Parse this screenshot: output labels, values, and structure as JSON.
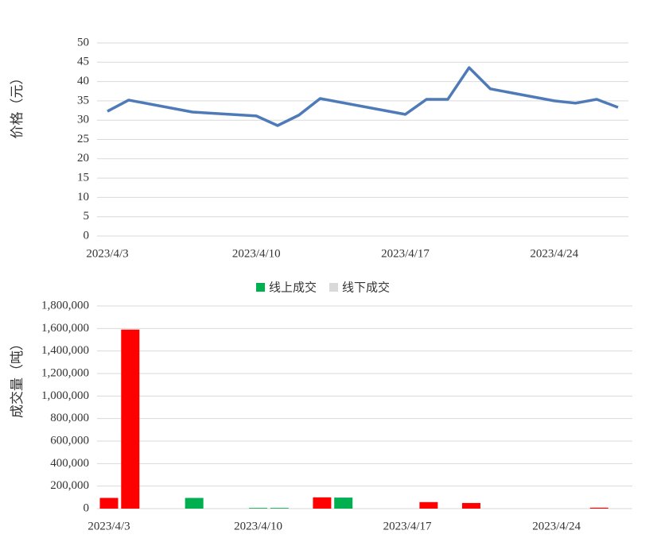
{
  "chart_data": [
    {
      "type": "line",
      "y_label": "价格（元）",
      "color": "#4f7ab8",
      "grid": true,
      "x": [
        "2023/4/3",
        "2023/4/4",
        "2023/4/7",
        "2023/4/10",
        "2023/4/11",
        "2023/4/12",
        "2023/4/13",
        "2023/4/17",
        "2023/4/18",
        "2023/4/19",
        "2023/4/20",
        "2023/4/21",
        "2023/4/24",
        "2023/4/25",
        "2023/4/26",
        "2023/4/27"
      ],
      "values": [
        32.3,
        35.2,
        32.1,
        31.1,
        28.6,
        31.3,
        35.6,
        31.5,
        35.4,
        35.4,
        43.6,
        38.1,
        35,
        34.4,
        35.4,
        33.3
      ],
      "xlim": [
        "2023/4/3",
        "2023/4/27"
      ],
      "xticks": [
        "2023/4/3",
        "2023/4/10",
        "2023/4/17",
        "2023/4/24"
      ],
      "ylim": [
        0,
        50
      ],
      "yticks": [
        0,
        5,
        10,
        15,
        20,
        25,
        30,
        35,
        40,
        45,
        50
      ]
    },
    {
      "type": "bar",
      "y_label": "成交量（吨）",
      "grid": true,
      "x": [
        "2023/4/3",
        "2023/4/4",
        "2023/4/7",
        "2023/4/10",
        "2023/4/11",
        "2023/4/13",
        "2023/4/14",
        "2023/4/18",
        "2023/4/20",
        "2023/4/26"
      ],
      "series": [
        {
          "color": "#ff0000",
          "values": [
            95000,
            1590000,
            null,
            null,
            null,
            100000,
            null,
            58000,
            50000,
            8000
          ]
        },
        {
          "name": "线上成交",
          "color": "#00b050",
          "values": [
            null,
            null,
            95000,
            6000,
            6000,
            null,
            98000,
            null,
            null,
            null
          ]
        },
        {
          "name": "线下成交",
          "color": "#d9d9d9",
          "values": [
            null,
            null,
            null,
            null,
            null,
            null,
            null,
            null,
            null,
            null
          ]
        }
      ],
      "xlim": [
        "2023/4/3",
        "2023/4/27"
      ],
      "xticks": [
        "2023/4/3",
        "2023/4/10",
        "2023/4/17",
        "2023/4/24"
      ],
      "ylim": [
        0,
        1800000
      ],
      "yticks": [
        0,
        {
          "value": 200000,
          "label": "200,000"
        },
        {
          "value": 400000,
          "label": "400,000"
        },
        {
          "value": 600000,
          "label": "600,000"
        },
        {
          "value": 800000,
          "label": "800,000"
        },
        {
          "value": 1000000,
          "label": "1,000,000"
        },
        {
          "value": 1200000,
          "label": "1,200,000"
        },
        {
          "value": 1400000,
          "label": "1,400,000"
        },
        {
          "value": 1600000,
          "label": "1,600,000"
        },
        {
          "value": 1800000,
          "label": "1,800,000"
        }
      ]
    }
  ]
}
